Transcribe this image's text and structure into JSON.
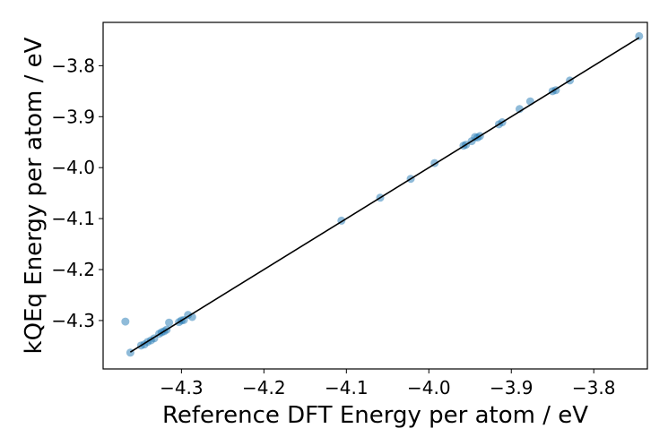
{
  "chart_data": {
    "type": "scatter",
    "title": "",
    "xlabel": "Reference DFT Energy per atom / eV",
    "ylabel": "kQEq Energy per atom / eV",
    "xlim": [
      -4.395,
      -3.735
    ],
    "ylim": [
      -4.395,
      -3.715
    ],
    "x_ticks": [
      -4.3,
      -4.2,
      -4.1,
      -4.0,
      -3.9,
      -3.8
    ],
    "x_tick_labels": [
      "−4.3",
      "−4.2",
      "−4.1",
      "−4.0",
      "−3.9",
      "−3.8"
    ],
    "y_ticks": [
      -4.3,
      -4.2,
      -4.1,
      -4.0,
      -3.9,
      -3.8
    ],
    "y_tick_labels": [
      "−4.3",
      "−4.2",
      "−4.1",
      "−4.0",
      "−3.9",
      "−3.8"
    ],
    "grid": false,
    "series": [
      {
        "kind": "scatter",
        "color": "#1f77b4",
        "alpha": 0.5,
        "points": [
          [
            -4.368,
            -4.302
          ],
          [
            -4.362,
            -4.363
          ],
          [
            -4.349,
            -4.349
          ],
          [
            -4.345,
            -4.347
          ],
          [
            -4.341,
            -4.342
          ],
          [
            -4.337,
            -4.339
          ],
          [
            -4.333,
            -4.335
          ],
          [
            -4.327,
            -4.326
          ],
          [
            -4.324,
            -4.323
          ],
          [
            -4.321,
            -4.321
          ],
          [
            -4.318,
            -4.318
          ],
          [
            -4.315,
            -4.304
          ],
          [
            -4.303,
            -4.303
          ],
          [
            -4.3,
            -4.3
          ],
          [
            -4.297,
            -4.299
          ],
          [
            -4.292,
            -4.289
          ],
          [
            -4.287,
            -4.293
          ],
          [
            -4.106,
            -4.104
          ],
          [
            -4.059,
            -4.059
          ],
          [
            -4.022,
            -4.022
          ],
          [
            -3.993,
            -3.991
          ],
          [
            -3.958,
            -3.957
          ],
          [
            -3.955,
            -3.955
          ],
          [
            -3.948,
            -3.948
          ],
          [
            -3.944,
            -3.94
          ],
          [
            -3.941,
            -3.941
          ],
          [
            -3.938,
            -3.938
          ],
          [
            -3.915,
            -3.915
          ],
          [
            -3.911,
            -3.911
          ],
          [
            -3.89,
            -3.885
          ],
          [
            -3.877,
            -3.87
          ],
          [
            -3.85,
            -3.85
          ],
          [
            -3.846,
            -3.848
          ],
          [
            -3.829,
            -3.829
          ],
          [
            -3.745,
            -3.742
          ]
        ]
      },
      {
        "kind": "line",
        "color": "#000000",
        "points": [
          [
            -4.362,
            -4.362
          ],
          [
            -3.745,
            -3.745
          ]
        ]
      }
    ]
  }
}
